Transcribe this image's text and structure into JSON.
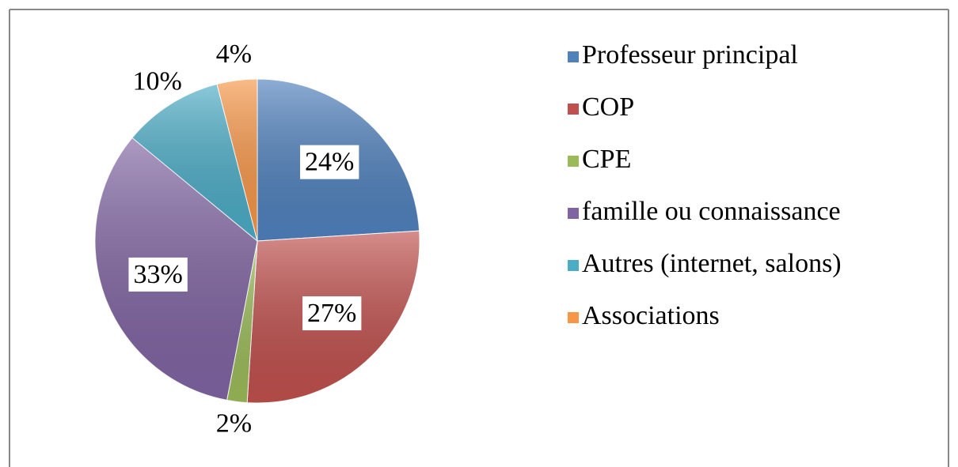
{
  "chart_data": {
    "type": "pie",
    "categories": [
      "Professeur principal",
      "COP",
      "CPE",
      "famille ou connaissance",
      "Autres (internet, salons)",
      "Associations"
    ],
    "values": [
      24,
      27,
      2,
      33,
      10,
      4
    ],
    "value_labels": [
      "24%",
      "27%",
      "2%",
      "33%",
      "10%",
      "4%"
    ],
    "colors": [
      "#4f81bd",
      "#c0504d",
      "#9bbb59",
      "#8064a2",
      "#4bacc6",
      "#f79646"
    ],
    "legend": "right"
  }
}
